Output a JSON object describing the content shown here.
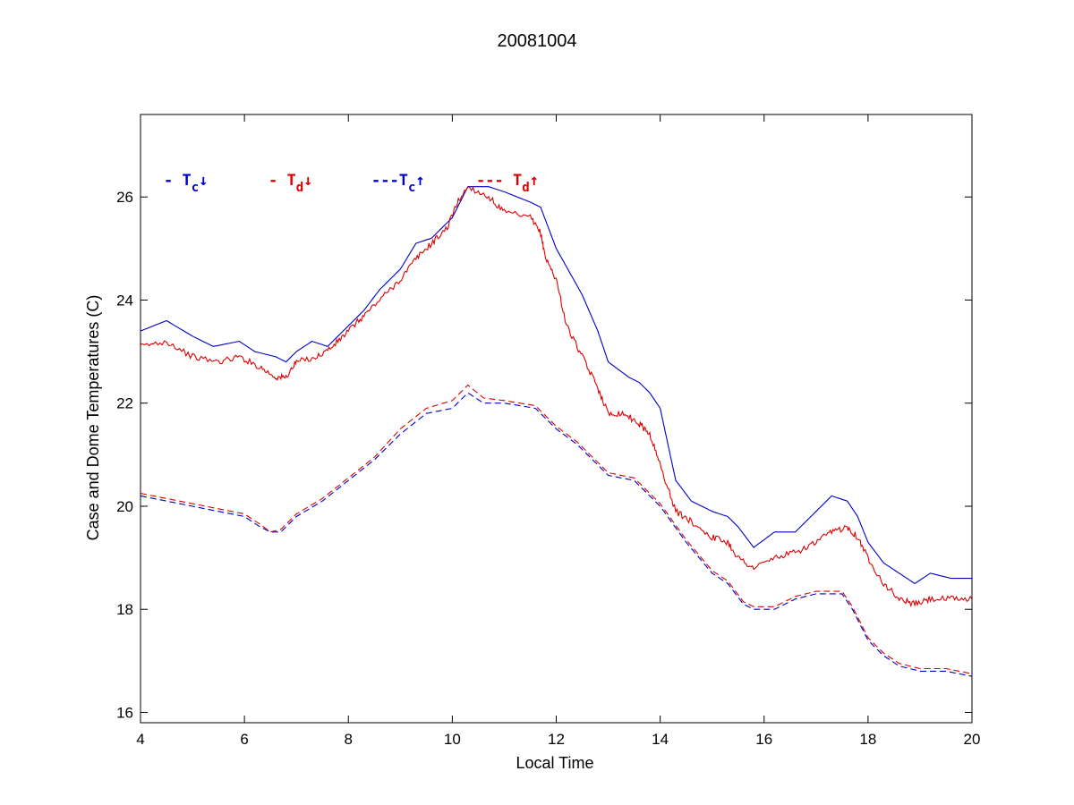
{
  "chart_data": {
    "type": "line",
    "title": "20081004",
    "xlabel": "Local Time",
    "ylabel": "Case and Dome Temperatures (C)",
    "xlim": [
      4,
      20
    ],
    "ylim": [
      15.8,
      27.6
    ],
    "xticks": [
      4,
      6,
      8,
      10,
      12,
      14,
      16,
      18,
      20
    ],
    "yticks": [
      16,
      18,
      20,
      22,
      24,
      26
    ],
    "grid": false,
    "legend_position": "top-left inside",
    "legend": [
      {
        "prefix": "- T",
        "sub": "c",
        "arrow": "↓",
        "color": "#0000cc",
        "series": "tc_down"
      },
      {
        "prefix": "- T",
        "sub": "d",
        "arrow": "↓",
        "color": "#dd0000",
        "series": "td_down"
      },
      {
        "prefix": "---T",
        "sub": "c",
        "arrow": "↑",
        "color": "#0000cc",
        "series": "tc_up"
      },
      {
        "prefix": "--- T",
        "sub": "d",
        "arrow": "↑",
        "color": "#dd0000",
        "series": "td_up"
      }
    ],
    "series": [
      {
        "key": "tc_down",
        "color": "#0000cc",
        "dash": "solid",
        "noise": 0.0,
        "x": [
          4.0,
          4.5,
          5.0,
          5.4,
          5.9,
          6.2,
          6.6,
          6.8,
          7.0,
          7.3,
          7.6,
          8.0,
          8.3,
          8.6,
          9.0,
          9.3,
          9.6,
          10.0,
          10.3,
          10.7,
          11.0,
          11.5,
          11.7,
          12.0,
          12.5,
          12.8,
          13.0,
          13.4,
          13.6,
          13.8,
          14.0,
          14.3,
          14.6,
          15.0,
          15.3,
          15.5,
          15.8,
          16.2,
          16.6,
          17.0,
          17.3,
          17.6,
          17.8,
          18.0,
          18.3,
          18.6,
          18.9,
          19.2,
          19.6,
          20.0
        ],
        "y": [
          23.4,
          23.6,
          23.3,
          23.1,
          23.2,
          23.0,
          22.9,
          22.8,
          23.0,
          23.2,
          23.1,
          23.5,
          23.8,
          24.2,
          24.6,
          25.1,
          25.2,
          25.6,
          26.2,
          26.2,
          26.1,
          25.9,
          25.8,
          25.0,
          24.1,
          23.4,
          22.8,
          22.5,
          22.4,
          22.2,
          21.9,
          20.5,
          20.1,
          19.9,
          19.8,
          19.6,
          19.2,
          19.5,
          19.5,
          19.9,
          20.2,
          20.1,
          19.8,
          19.3,
          18.9,
          18.7,
          18.5,
          18.7,
          18.6,
          18.6
        ]
      },
      {
        "key": "td_down",
        "color": "#dd0000",
        "dash": "solid",
        "noise": 0.06,
        "x": [
          4.0,
          4.5,
          5.0,
          5.5,
          5.9,
          6.3,
          6.6,
          6.8,
          7.0,
          7.4,
          7.7,
          8.0,
          8.3,
          8.6,
          9.0,
          9.3,
          9.6,
          9.9,
          10.1,
          10.3,
          10.7,
          11.0,
          11.5,
          11.7,
          11.8,
          12.0,
          12.2,
          12.5,
          12.8,
          13.0,
          13.3,
          13.6,
          13.8,
          14.0,
          14.3,
          14.6,
          15.0,
          15.3,
          15.5,
          15.8,
          16.2,
          16.6,
          17.0,
          17.3,
          17.6,
          17.8,
          18.0,
          18.3,
          18.6,
          18.9,
          19.2,
          19.6,
          20.0
        ],
        "y": [
          23.1,
          23.2,
          22.9,
          22.8,
          22.9,
          22.7,
          22.5,
          22.5,
          22.8,
          22.9,
          23.1,
          23.4,
          23.7,
          24.0,
          24.4,
          24.8,
          25.1,
          25.4,
          25.9,
          26.2,
          26.0,
          25.7,
          25.6,
          25.3,
          24.8,
          24.4,
          23.5,
          22.9,
          22.3,
          21.8,
          21.8,
          21.6,
          21.4,
          20.8,
          19.9,
          19.7,
          19.4,
          19.3,
          19.0,
          18.8,
          19.0,
          19.1,
          19.3,
          19.5,
          19.6,
          19.4,
          19.0,
          18.5,
          18.2,
          18.1,
          18.2,
          18.2,
          18.2
        ]
      },
      {
        "key": "tc_up",
        "color": "#0000cc",
        "dash": "dashed",
        "noise": 0.0,
        "x": [
          4.0,
          4.5,
          5.0,
          5.5,
          6.0,
          6.3,
          6.5,
          6.7,
          7.0,
          7.5,
          8.0,
          8.5,
          9.0,
          9.5,
          10.0,
          10.3,
          10.6,
          11.0,
          11.6,
          12.0,
          12.4,
          12.8,
          13.0,
          13.5,
          14.0,
          14.5,
          15.0,
          15.3,
          15.6,
          15.8,
          16.2,
          16.6,
          17.0,
          17.5,
          17.7,
          18.0,
          18.3,
          18.6,
          19.0,
          19.5,
          20.0
        ],
        "y": [
          20.2,
          20.1,
          20.0,
          19.9,
          19.8,
          19.6,
          19.5,
          19.5,
          19.8,
          20.1,
          20.5,
          20.9,
          21.4,
          21.8,
          21.9,
          22.2,
          22.0,
          22.0,
          21.9,
          21.5,
          21.2,
          20.8,
          20.6,
          20.5,
          20.0,
          19.3,
          18.7,
          18.5,
          18.1,
          18.0,
          18.0,
          18.2,
          18.3,
          18.3,
          18.0,
          17.4,
          17.1,
          16.9,
          16.8,
          16.8,
          16.7
        ]
      },
      {
        "key": "td_up",
        "color": "#dd0000",
        "dash": "dashed",
        "noise": 0.0,
        "x": [
          4.0,
          4.5,
          5.0,
          5.5,
          6.0,
          6.3,
          6.5,
          6.7,
          7.0,
          7.5,
          8.0,
          8.5,
          9.0,
          9.5,
          10.0,
          10.3,
          10.6,
          11.0,
          11.6,
          12.0,
          12.4,
          12.8,
          13.0,
          13.5,
          14.0,
          14.5,
          15.0,
          15.3,
          15.6,
          15.8,
          16.2,
          16.6,
          17.0,
          17.5,
          17.7,
          18.0,
          18.3,
          18.6,
          19.0,
          19.5,
          20.0
        ],
        "y": [
          20.25,
          20.15,
          20.05,
          19.95,
          19.85,
          19.65,
          19.5,
          19.55,
          19.85,
          20.15,
          20.55,
          20.95,
          21.5,
          21.9,
          22.05,
          22.35,
          22.1,
          22.05,
          21.95,
          21.55,
          21.25,
          20.85,
          20.65,
          20.55,
          20.05,
          19.35,
          18.75,
          18.55,
          18.15,
          18.05,
          18.05,
          18.25,
          18.35,
          18.35,
          18.05,
          17.45,
          17.15,
          16.95,
          16.85,
          16.85,
          16.75
        ]
      }
    ]
  }
}
